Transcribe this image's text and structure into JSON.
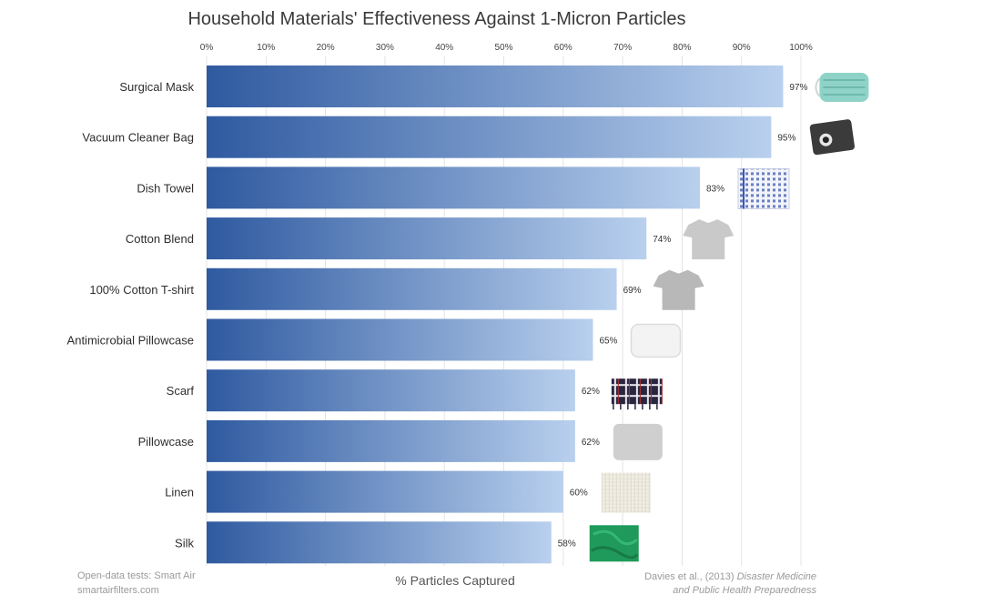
{
  "chart_data": {
    "type": "bar",
    "orientation": "horizontal",
    "title": "Household Materials' Effectiveness Against 1-Micron Particles",
    "xlabel": "% Particles Captured",
    "ylabel": "",
    "xlim": [
      0,
      100
    ],
    "x_ticks": [
      "0%",
      "10%",
      "20%",
      "30%",
      "40%",
      "50%",
      "60%",
      "70%",
      "80%",
      "90%",
      "100%"
    ],
    "categories": [
      "Surgical Mask",
      "Vacuum Cleaner Bag",
      "Dish Towel",
      "Cotton Blend",
      "100% Cotton T-shirt",
      "Antimicrobial Pillowcase",
      "Scarf",
      "Pillowcase",
      "Linen",
      "Silk"
    ],
    "values": [
      97,
      95,
      83,
      74,
      69,
      65,
      62,
      62,
      60,
      58
    ],
    "value_labels": [
      "97%",
      "95%",
      "83%",
      "74%",
      "69%",
      "65%",
      "62%",
      "62%",
      "60%",
      "58%"
    ],
    "grid": "vertical",
    "bar_color_start": "#2f5aa0",
    "bar_color_end": "#b9d0ee",
    "item_icons": [
      "surgical-mask-photo",
      "vacuum-bag-photo",
      "dish-towel-photo",
      "cotton-blend-tshirt-photo",
      "cotton-tshirt-photo",
      "antimicrobial-pillowcase-photo",
      "scarf-photo",
      "pillowcase-photo",
      "linen-photo",
      "silk-photo"
    ]
  },
  "sources": {
    "left_line1": "Open-data tests: Smart Air",
    "left_line2": "smartairfilters.com",
    "right_line1_plain": "Davies et al., (2013) ",
    "right_line1_italic": "Disaster Medicine",
    "right_line2_italic": "and Public Health Preparedness"
  }
}
